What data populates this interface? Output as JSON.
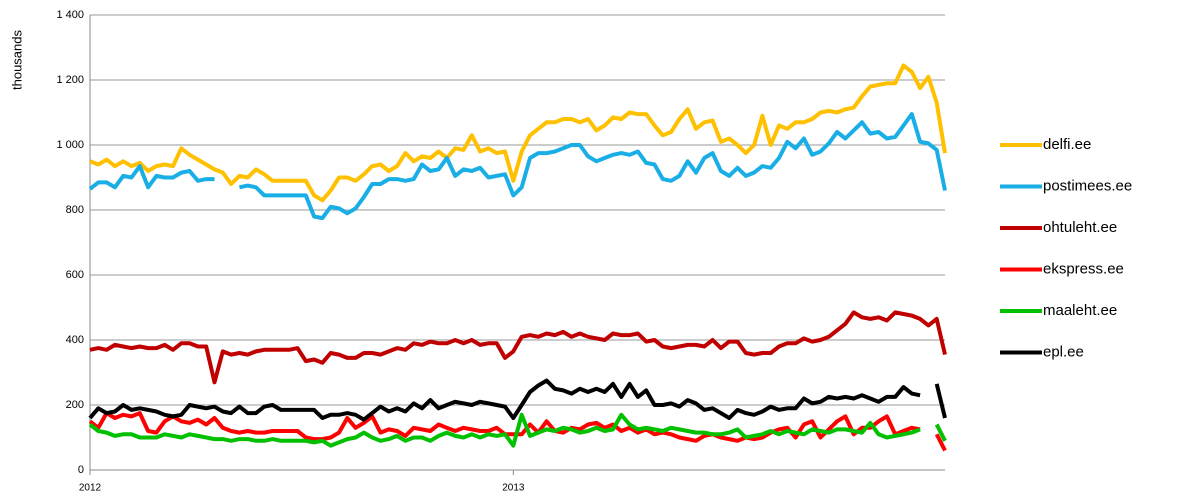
{
  "chart_data": {
    "type": "line",
    "ylabel": "thousands",
    "categories": [
      "2012",
      null,
      null,
      null,
      null,
      null,
      null,
      null,
      null,
      null,
      null,
      null,
      null,
      null,
      null,
      null,
      null,
      null,
      null,
      null,
      null,
      null,
      null,
      null,
      null,
      null,
      null,
      null,
      null,
      null,
      null,
      null,
      null,
      null,
      null,
      null,
      null,
      null,
      null,
      null,
      null,
      null,
      null,
      null,
      null,
      null,
      null,
      null,
      null,
      null,
      null,
      "2013",
      null,
      null,
      null,
      null,
      null,
      null,
      null,
      null,
      null,
      null,
      null,
      null,
      null,
      null,
      null,
      null,
      null,
      null,
      null,
      null,
      null,
      null,
      null,
      null,
      null,
      null,
      null,
      null,
      null,
      null,
      null,
      null,
      null,
      null,
      null,
      null,
      null,
      null,
      null,
      null,
      null,
      null,
      null,
      null,
      null,
      null,
      null,
      null,
      null,
      null,
      null,
      null
    ],
    "ylim": [
      0,
      1400
    ],
    "yticks": [
      0,
      200,
      400,
      600,
      800,
      {
        "value": 1000,
        "label": "1 000"
      },
      {
        "value": 1200,
        "label": "1 200"
      },
      {
        "value": 1400,
        "label": "1 400"
      }
    ],
    "grid": true,
    "legend": "right",
    "series": [
      {
        "name": "delfi.ee",
        "color": "#ffc000",
        "values": [
          950,
          940,
          955,
          935,
          950,
          935,
          945,
          920,
          935,
          940,
          935,
          990,
          970,
          955,
          940,
          925,
          915,
          880,
          905,
          900,
          925,
          910,
          890,
          890,
          890,
          890,
          890,
          845,
          830,
          860,
          900,
          900,
          890,
          910,
          935,
          940,
          920,
          935,
          975,
          950,
          965,
          960,
          980,
          960,
          990,
          985,
          1030,
          980,
          990,
          975,
          980,
          890,
          980,
          1030,
          1050,
          1070,
          1070,
          1080,
          1080,
          1070,
          1080,
          1045,
          1060,
          1085,
          1080,
          1100,
          1095,
          1095,
          1060,
          1030,
          1040,
          1080,
          1110,
          1050,
          1070,
          1075,
          1010,
          1020,
          1000,
          975,
          1000,
          1090,
          1000,
          1060,
          1050,
          1070,
          1070,
          1080,
          1100,
          1105,
          1100,
          1110,
          1115,
          1150,
          1180,
          1185,
          1190,
          1190,
          1245,
          1225,
          1175,
          1210,
          1130,
          975
        ]
      },
      {
        "name": "postimees.ee",
        "color": "#1aaee6",
        "values": [
          865,
          885,
          885,
          870,
          905,
          900,
          935,
          870,
          905,
          900,
          900,
          915,
          920,
          890,
          895,
          895,
          null,
          null,
          870,
          875,
          870,
          845,
          845,
          845,
          845,
          845,
          845,
          780,
          775,
          810,
          805,
          790,
          805,
          840,
          880,
          880,
          895,
          895,
          890,
          895,
          940,
          920,
          925,
          960,
          905,
          925,
          920,
          930,
          900,
          905,
          910,
          845,
          870,
          960,
          975,
          975,
          980,
          990,
          1000,
          1000,
          965,
          950,
          960,
          970,
          975,
          970,
          980,
          945,
          940,
          895,
          890,
          905,
          950,
          915,
          960,
          975,
          920,
          905,
          930,
          905,
          915,
          935,
          930,
          960,
          1010,
          990,
          1020,
          970,
          980,
          1005,
          1040,
          1020,
          1045,
          1070,
          1035,
          1040,
          1020,
          1025,
          1060,
          1095,
          1010,
          1005,
          985,
          860
        ]
      },
      {
        "name": "ohtuleht.ee",
        "color": "#c00000",
        "values": [
          370,
          375,
          370,
          385,
          380,
          375,
          380,
          375,
          375,
          385,
          370,
          390,
          390,
          380,
          380,
          270,
          365,
          355,
          360,
          355,
          365,
          370,
          370,
          370,
          370,
          375,
          335,
          340,
          330,
          360,
          355,
          345,
          345,
          360,
          360,
          355,
          365,
          375,
          370,
          390,
          385,
          395,
          390,
          390,
          400,
          390,
          400,
          385,
          390,
          390,
          345,
          365,
          410,
          415,
          410,
          420,
          415,
          425,
          410,
          420,
          410,
          405,
          400,
          420,
          415,
          415,
          420,
          395,
          400,
          380,
          375,
          380,
          385,
          385,
          380,
          400,
          375,
          395,
          395,
          360,
          355,
          360,
          360,
          380,
          390,
          390,
          405,
          395,
          400,
          410,
          430,
          450,
          485,
          470,
          465,
          470,
          460,
          485,
          480,
          475,
          465,
          445,
          465,
          355
        ]
      },
      {
        "name": "ekspress.ee",
        "color": "#ff0000",
        "values": [
          150,
          130,
          175,
          160,
          170,
          165,
          175,
          120,
          115,
          150,
          165,
          150,
          145,
          155,
          140,
          160,
          130,
          120,
          115,
          120,
          115,
          115,
          120,
          120,
          120,
          120,
          100,
          95,
          95,
          100,
          115,
          160,
          130,
          145,
          165,
          115,
          125,
          120,
          105,
          130,
          125,
          120,
          140,
          130,
          120,
          130,
          125,
          120,
          120,
          130,
          110,
          110,
          110,
          140,
          115,
          150,
          120,
          115,
          130,
          125,
          140,
          145,
          130,
          140,
          120,
          130,
          115,
          125,
          110,
          115,
          110,
          100,
          95,
          90,
          105,
          110,
          100,
          95,
          90,
          100,
          95,
          100,
          115,
          125,
          130,
          100,
          140,
          150,
          100,
          125,
          150,
          165,
          110,
          130,
          130,
          150,
          165,
          110,
          120,
          130,
          125,
          null,
          110,
          60
        ]
      },
      {
        "name": "maaleht.ee",
        "color": "#00c000",
        "values": [
          140,
          120,
          115,
          105,
          110,
          110,
          100,
          100,
          100,
          110,
          105,
          100,
          110,
          105,
          100,
          95,
          95,
          90,
          95,
          95,
          90,
          90,
          95,
          90,
          90,
          90,
          90,
          85,
          90,
          75,
          85,
          95,
          100,
          115,
          100,
          90,
          95,
          105,
          90,
          100,
          100,
          90,
          105,
          115,
          105,
          100,
          110,
          100,
          110,
          105,
          110,
          75,
          170,
          105,
          115,
          125,
          120,
          130,
          125,
          115,
          120,
          130,
          120,
          125,
          170,
          140,
          125,
          130,
          125,
          120,
          130,
          125,
          120,
          115,
          115,
          110,
          110,
          115,
          125,
          100,
          105,
          110,
          120,
          110,
          120,
          115,
          110,
          125,
          120,
          115,
          125,
          125,
          120,
          115,
          145,
          110,
          100,
          105,
          110,
          115,
          125,
          null,
          140,
          90
        ]
      },
      {
        "name": "epl.ee",
        "color": "#000000",
        "values": [
          160,
          190,
          175,
          180,
          200,
          185,
          190,
          185,
          180,
          170,
          165,
          170,
          200,
          195,
          190,
          195,
          180,
          175,
          195,
          175,
          175,
          195,
          200,
          185,
          185,
          185,
          185,
          185,
          160,
          170,
          170,
          175,
          170,
          155,
          175,
          195,
          180,
          190,
          180,
          205,
          190,
          215,
          190,
          200,
          210,
          205,
          200,
          210,
          205,
          200,
          195,
          160,
          200,
          240,
          260,
          275,
          250,
          245,
          235,
          250,
          240,
          250,
          240,
          265,
          225,
          265,
          225,
          245,
          200,
          200,
          205,
          195,
          215,
          205,
          185,
          190,
          175,
          160,
          185,
          175,
          170,
          180,
          195,
          185,
          190,
          190,
          220,
          205,
          210,
          225,
          220,
          225,
          220,
          230,
          220,
          210,
          225,
          225,
          255,
          235,
          230,
          null,
          265,
          160
        ]
      }
    ]
  }
}
